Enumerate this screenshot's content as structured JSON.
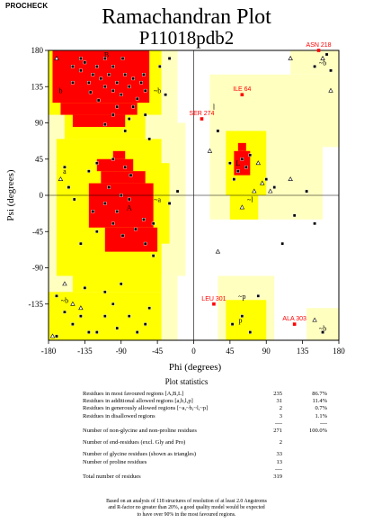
{
  "header": {
    "program": "PROCHECK",
    "title": "Ramachandran Plot",
    "subtitle": "P11018pdb2"
  },
  "chart_data": {
    "type": "scatter",
    "title": "Ramachandran Plot",
    "subtitle": "P11018pdb2",
    "xlabel": "Phi (degrees)",
    "ylabel": "Psi (degrees)",
    "xlim": [
      -180,
      180
    ],
    "ylim": [
      -180,
      180
    ],
    "xticks": [
      -180,
      -135,
      -90,
      -45,
      0,
      45,
      90,
      135,
      180
    ],
    "yticks": [
      -135,
      -90,
      -45,
      0,
      45,
      90,
      135,
      180
    ],
    "colors": {
      "core": "#ff0000",
      "allowed": "#ffff00",
      "generous": "#ffffc0",
      "disallowed": "#ffffff",
      "outlier_label": "#ff0000"
    },
    "region_labels": [
      {
        "text": "b",
        "phi": -165,
        "psi": 130
      },
      {
        "text": "~b",
        "phi": -45,
        "psi": 130
      },
      {
        "text": "B",
        "phi": -108,
        "psi": 175
      },
      {
        "text": "l",
        "phi": 25,
        "psi": 110
      },
      {
        "text": "L",
        "phi": 55,
        "psi": 40
      },
      {
        "text": "~l",
        "phi": 70,
        "psi": -5
      },
      {
        "text": "a",
        "phi": -160,
        "psi": 30
      },
      {
        "text": "~a",
        "phi": -45,
        "psi": -5
      },
      {
        "text": "A",
        "phi": -80,
        "psi": -15
      },
      {
        "text": "p",
        "phi": 58,
        "psi": -155
      },
      {
        "text": "~p",
        "phi": 60,
        "psi": -125
      },
      {
        "text": "~b",
        "phi": -160,
        "psi": -130
      },
      {
        "text": "~b",
        "phi": 160,
        "psi": 165
      },
      {
        "text": "~b",
        "phi": 160,
        "psi": -165
      }
    ],
    "outliers": [
      {
        "label": "ASN 218",
        "phi": 155,
        "psi": 180
      },
      {
        "label": "ILE 64",
        "phi": 60,
        "psi": 125
      },
      {
        "label": "SER 274",
        "phi": 10,
        "psi": 95
      },
      {
        "label": "LEU 301",
        "phi": 25,
        "psi": -135
      },
      {
        "label": "ALA 303",
        "phi": 125,
        "psi": -160
      }
    ],
    "series": [
      {
        "name": "",
        "marker": "square",
        "points": [
          [
            -150,
            160
          ],
          [
            -140,
            155
          ],
          [
            -135,
            165
          ],
          [
            -125,
            150
          ],
          [
            -120,
            160
          ],
          [
            -115,
            145
          ],
          [
            -110,
            135
          ],
          [
            -105,
            150
          ],
          [
            -100,
            130
          ],
          [
            -95,
            140
          ],
          [
            -90,
            125
          ],
          [
            -85,
            150
          ],
          [
            -80,
            135
          ],
          [
            -75,
            145
          ],
          [
            -70,
            120
          ],
          [
            -65,
            140
          ],
          [
            -128,
            128
          ],
          [
            -118,
            118
          ],
          [
            -100,
            160
          ],
          [
            -88,
            170
          ],
          [
            -140,
            170
          ],
          [
            -110,
            170
          ],
          [
            -95,
            110
          ],
          [
            -75,
            110
          ],
          [
            -60,
            130
          ],
          [
            -150,
            140
          ],
          [
            -130,
            140
          ],
          [
            -100,
            100
          ],
          [
            -80,
            95
          ],
          [
            -62,
            150
          ],
          [
            -110,
            88
          ],
          [
            -85,
            80
          ],
          [
            -120,
            40
          ],
          [
            -160,
            35
          ],
          [
            -155,
            10
          ],
          [
            -148,
            -5
          ],
          [
            -105,
            10
          ],
          [
            -90,
            0
          ],
          [
            -110,
            -10
          ],
          [
            -95,
            -20
          ],
          [
            -80,
            -5
          ],
          [
            -100,
            45
          ],
          [
            -85,
            35
          ],
          [
            -125,
            -20
          ],
          [
            -100,
            -35
          ],
          [
            -88,
            -50
          ],
          [
            -72,
            -42
          ],
          [
            -130,
            30
          ],
          [
            -78,
            25
          ],
          [
            -62,
            -30
          ],
          [
            -140,
            -60
          ],
          [
            -120,
            -45
          ],
          [
            -60,
            -60
          ],
          [
            -50,
            -35
          ],
          [
            -50,
            -75
          ],
          [
            -30,
            -10
          ],
          [
            -20,
            5
          ],
          [
            -170,
            -125
          ],
          [
            -160,
            -145
          ],
          [
            -150,
            -160
          ],
          [
            -130,
            -170
          ],
          [
            -110,
            -150
          ],
          [
            -100,
            -135
          ],
          [
            -95,
            -165
          ],
          [
            -80,
            -150
          ],
          [
            -70,
            -170
          ],
          [
            -60,
            -160
          ],
          [
            -55,
            -140
          ],
          [
            -120,
            -170
          ],
          [
            -140,
            -150
          ],
          [
            -135,
            -115
          ],
          [
            -110,
            -120
          ],
          [
            -90,
            -110
          ],
          [
            -170,
            -175
          ],
          [
            60,
            45
          ],
          [
            55,
            30
          ],
          [
            65,
            35
          ],
          [
            70,
            50
          ],
          [
            50,
            20
          ],
          [
            45,
            40
          ],
          [
            60,
            -150
          ],
          [
            70,
            -170
          ],
          [
            48,
            -160
          ],
          [
            80,
            -125
          ],
          [
            90,
            20
          ],
          [
            100,
            10
          ],
          [
            140,
            5
          ],
          [
            125,
            -25
          ],
          [
            150,
            -35
          ],
          [
            165,
            175
          ],
          [
            170,
            155
          ],
          [
            150,
            160
          ],
          [
            160,
            -170
          ],
          [
            -55,
            70
          ],
          [
            -60,
            100
          ],
          [
            30,
            80
          ],
          [
            110,
            -60
          ],
          [
            -30,
            170
          ],
          [
            -42,
            160
          ],
          [
            -35,
            125
          ]
        ]
      },
      {
        "name": "",
        "marker": "triangle",
        "points": [
          [
            -175,
            -175
          ],
          [
            -170,
            170
          ],
          [
            -160,
            -110
          ],
          [
            -165,
            20
          ],
          [
            20,
            55
          ],
          [
            85,
            15
          ],
          [
            95,
            5
          ],
          [
            30,
            -70
          ],
          [
            60,
            -15
          ],
          [
            75,
            5
          ],
          [
            -140,
            -140
          ],
          [
            160,
            170
          ],
          [
            -150,
            -135
          ],
          [
            120,
            170
          ],
          [
            170,
            130
          ],
          [
            150,
            -155
          ],
          [
            120,
            20
          ],
          [
            80,
            40
          ]
        ]
      }
    ],
    "stats_title": "Plot statistics",
    "stats": [
      {
        "label": "Residues in most favoured regions [A,B,L]",
        "count": "235",
        "percent": "86.7%"
      },
      {
        "label": "Residues in additional allowed regions [a,b,l,p]",
        "count": "31",
        "percent": "11.4%"
      },
      {
        "label": "Residues in generously allowed regions [~a,~b,~l,~p]",
        "count": "2",
        "percent": "0.7%"
      },
      {
        "label": "Residues in disallowed regions",
        "count": "3",
        "percent": "1.1%"
      },
      {
        "label": "Number of non-glycine and non-proline residues",
        "count": "271",
        "percent": "100.0%"
      },
      {
        "label": "Number of end-residues (excl. Gly and Pro)",
        "count": "2",
        "percent": ""
      },
      {
        "label": "Number of glycine residues (shown as triangles)",
        "count": "33",
        "percent": ""
      },
      {
        "label": "Number of proline residues",
        "count": "13",
        "percent": ""
      },
      {
        "label": "Total number of residues",
        "count": "319",
        "percent": ""
      }
    ],
    "dashes": "----",
    "note": [
      "Based on an analysis of 118 structures of resolution of at least 2.0 Angstroms",
      "and R-factor no greater than 20%, a good quality model would be expected",
      "to have over 90% in the most favoured regions."
    ]
  }
}
